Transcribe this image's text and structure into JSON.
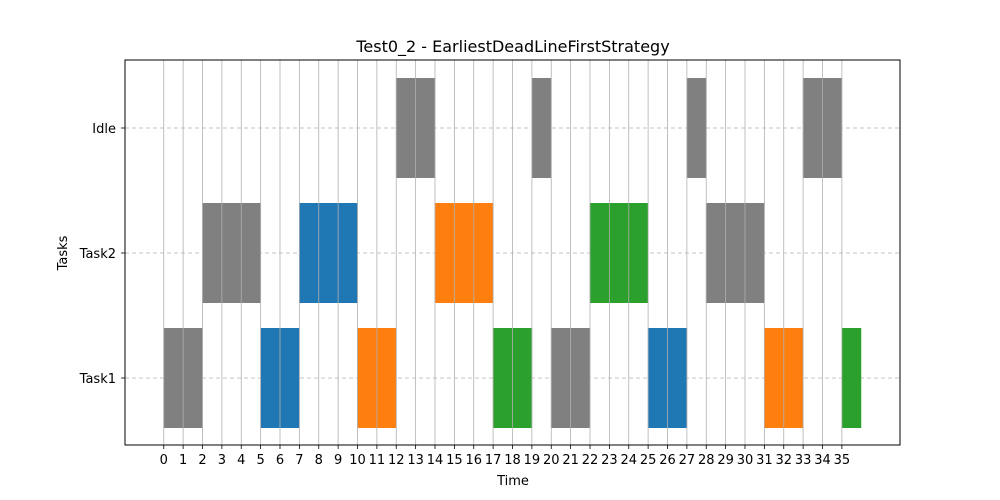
{
  "chart_data": {
    "type": "gantt",
    "title": "Test0_2 - EarliestDeadLineFirstStrategy",
    "xlabel": "Time",
    "ylabel": "Tasks",
    "categories": [
      "Task1",
      "Task2",
      "Idle"
    ],
    "x_ticks": [
      0,
      1,
      2,
      3,
      4,
      5,
      6,
      7,
      8,
      9,
      10,
      11,
      12,
      13,
      14,
      15,
      16,
      17,
      18,
      19,
      20,
      21,
      22,
      23,
      24,
      25,
      26,
      27,
      28,
      29,
      30,
      31,
      32,
      33,
      34,
      35
    ],
    "xlim": [
      -2,
      38
    ],
    "grid": {
      "x": "solid",
      "y": "dashed"
    },
    "colors": {
      "gray": "#808080",
      "blue": "#1f77b4",
      "orange": "#ff7f0e",
      "green": "#2ca02c",
      "grid": "#b0b0b0"
    },
    "segments": [
      {
        "task": "Task1",
        "start": 0,
        "end": 2,
        "color": "gray"
      },
      {
        "task": "Task1",
        "start": 5,
        "end": 7,
        "color": "blue"
      },
      {
        "task": "Task1",
        "start": 10,
        "end": 12,
        "color": "orange"
      },
      {
        "task": "Task1",
        "start": 17,
        "end": 19,
        "color": "green"
      },
      {
        "task": "Task1",
        "start": 20,
        "end": 22,
        "color": "gray"
      },
      {
        "task": "Task1",
        "start": 25,
        "end": 27,
        "color": "blue"
      },
      {
        "task": "Task1",
        "start": 31,
        "end": 33,
        "color": "orange"
      },
      {
        "task": "Task1",
        "start": 35,
        "end": 36,
        "color": "green"
      },
      {
        "task": "Task2",
        "start": 2,
        "end": 5,
        "color": "gray"
      },
      {
        "task": "Task2",
        "start": 7,
        "end": 10,
        "color": "blue"
      },
      {
        "task": "Task2",
        "start": 14,
        "end": 17,
        "color": "orange"
      },
      {
        "task": "Task2",
        "start": 22,
        "end": 25,
        "color": "green"
      },
      {
        "task": "Task2",
        "start": 28,
        "end": 31,
        "color": "gray"
      },
      {
        "task": "Idle",
        "start": 12,
        "end": 14,
        "color": "gray"
      },
      {
        "task": "Idle",
        "start": 19,
        "end": 20,
        "color": "gray"
      },
      {
        "task": "Idle",
        "start": 27,
        "end": 28,
        "color": "gray"
      },
      {
        "task": "Idle",
        "start": 33,
        "end": 35,
        "color": "gray"
      }
    ]
  }
}
